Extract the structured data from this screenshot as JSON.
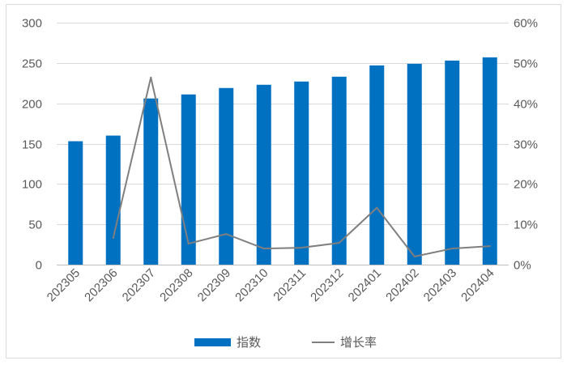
{
  "chart_data": {
    "type": "bar",
    "categories": [
      "202305",
      "202306",
      "202307",
      "202308",
      "202309",
      "202310",
      "202311",
      "202312",
      "202401",
      "202402",
      "202403",
      "202404"
    ],
    "series": [
      {
        "name": "指数",
        "type": "bar",
        "axis": "left",
        "color": "#0070C0",
        "values": [
          153,
          160,
          206,
          211,
          219,
          223,
          227,
          233,
          247,
          249,
          253,
          257
        ]
      },
      {
        "name": "增长率",
        "type": "line",
        "axis": "right",
        "unit": "%",
        "color": "#7F7F7F",
        "values": [
          null,
          6.6,
          46.4,
          5.2,
          7.6,
          4.0,
          4.2,
          5.4,
          14.1,
          2.0,
          4.0,
          4.6
        ]
      }
    ],
    "y_left": {
      "range": [
        0,
        300
      ],
      "ticks": [
        "0",
        "50",
        "100",
        "150",
        "200",
        "250",
        "300"
      ]
    },
    "y_right": {
      "range": [
        0,
        60
      ],
      "ticks": [
        "0%",
        "10%",
        "20%",
        "30%",
        "40%",
        "50%",
        "60%"
      ]
    },
    "grid": true,
    "legend": "bottom-center"
  }
}
